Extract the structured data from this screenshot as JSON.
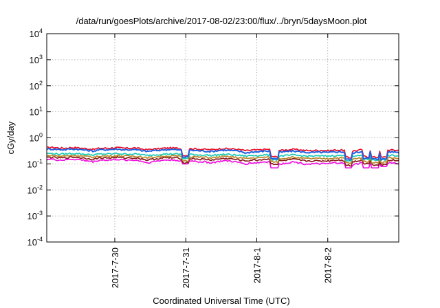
{
  "chart_data": {
    "type": "line",
    "title": "/data/run/goesPlots/archive/2017-08-02/23:00/flux/../bryn/5daysMoon.plot",
    "xlabel": "Coordinated Universal Time (UTC)",
    "ylabel": "cGy/day",
    "yscale": "log",
    "ylim": [
      0.0001,
      10000
    ],
    "yticks": [
      {
        "base": "10",
        "exp": "4",
        "value": 10000
      },
      {
        "base": "10",
        "exp": "3",
        "value": 1000
      },
      {
        "base": "10",
        "exp": "2",
        "value": 100
      },
      {
        "base": "10",
        "exp": "1",
        "value": 10
      },
      {
        "base": "10",
        "exp": "0",
        "value": 1
      },
      {
        "base": "10",
        "exp": "-1",
        "value": 0.1
      },
      {
        "base": "10",
        "exp": "-2",
        "value": 0.01
      },
      {
        "base": "10",
        "exp": "-3",
        "value": 0.001
      },
      {
        "base": "10",
        "exp": "-4",
        "value": 0.0001
      }
    ],
    "xlim": [
      "2017-07-29 01:00",
      "2017-08-03 00:00"
    ],
    "xticks": [
      {
        "label": "2017-7-30",
        "value": "2017-07-30 00:00"
      },
      {
        "label": "2017-7-31",
        "value": "2017-07-31 00:00"
      },
      {
        "label": "2017-8-1",
        "value": "2017-08-01 00:00"
      },
      {
        "label": "2017-8-2",
        "value": "2017-08-02 00:00"
      }
    ],
    "grid": true,
    "series": [
      {
        "color": "#e8102a",
        "base": 0.4,
        "values": [
          0.42,
          0.43,
          0.41,
          0.4,
          0.42,
          0.42,
          0.4,
          0.38,
          0.36,
          0.4,
          0.4,
          0.41,
          0.42,
          0.4,
          0.4,
          0.41,
          0.38,
          0.35,
          0.37,
          0.38,
          0.4,
          0.41,
          0.4,
          0.38,
          0.39,
          0.38,
          0.37,
          0.36,
          0.35,
          0.37,
          0.39,
          0.38,
          0.37,
          0.35,
          0.32,
          0.34,
          0.34,
          0.36,
          0.36,
          0.34,
          0.33,
          0.35,
          0.36,
          0.35,
          0.33,
          0.32,
          0.33,
          0.33,
          0.32,
          0.34,
          0.34,
          0.33,
          0.31,
          0.33,
          0.36,
          0.34,
          0.33,
          0.32,
          0.34,
          0.34,
          0.33
        ]
      },
      {
        "color": "#1f5fe0",
        "base": 0.34,
        "values": [
          0.37,
          0.37,
          0.36,
          0.35,
          0.37,
          0.37,
          0.35,
          0.33,
          0.31,
          0.35,
          0.35,
          0.36,
          0.37,
          0.35,
          0.35,
          0.35,
          0.33,
          0.3,
          0.32,
          0.33,
          0.35,
          0.36,
          0.35,
          0.33,
          0.34,
          0.33,
          0.32,
          0.31,
          0.3,
          0.32,
          0.34,
          0.33,
          0.32,
          0.3,
          0.26,
          0.29,
          0.29,
          0.31,
          0.31,
          0.29,
          0.28,
          0.3,
          0.31,
          0.3,
          0.28,
          0.27,
          0.28,
          0.28,
          0.27,
          0.29,
          0.29,
          0.28,
          0.26,
          0.28,
          0.31,
          0.29,
          0.28,
          0.27,
          0.29,
          0.29,
          0.28
        ]
      },
      {
        "color": "#19c9b6",
        "base": 0.24,
        "values": [
          0.25,
          0.25,
          0.24,
          0.24,
          0.25,
          0.25,
          0.24,
          0.23,
          0.22,
          0.24,
          0.24,
          0.24,
          0.25,
          0.24,
          0.24,
          0.24,
          0.23,
          0.21,
          0.22,
          0.23,
          0.24,
          0.24,
          0.24,
          0.23,
          0.23,
          0.23,
          0.22,
          0.22,
          0.21,
          0.22,
          0.23,
          0.23,
          0.22,
          0.21,
          0.2,
          0.21,
          0.21,
          0.22,
          0.22,
          0.21,
          0.2,
          0.21,
          0.22,
          0.21,
          0.2,
          0.2,
          0.2,
          0.2,
          0.2,
          0.21,
          0.21,
          0.2,
          0.19,
          0.2,
          0.22,
          0.21,
          0.2,
          0.2,
          0.21,
          0.21,
          0.2
        ]
      },
      {
        "color": "#b8862a",
        "base": 0.2,
        "values": [
          0.21,
          0.21,
          0.2,
          0.2,
          0.21,
          0.21,
          0.2,
          0.19,
          0.18,
          0.2,
          0.2,
          0.2,
          0.21,
          0.2,
          0.2,
          0.2,
          0.19,
          0.17,
          0.18,
          0.19,
          0.2,
          0.2,
          0.2,
          0.19,
          0.19,
          0.19,
          0.18,
          0.18,
          0.17,
          0.18,
          0.19,
          0.19,
          0.18,
          0.17,
          0.16,
          0.17,
          0.17,
          0.18,
          0.18,
          0.17,
          0.16,
          0.17,
          0.18,
          0.17,
          0.16,
          0.16,
          0.16,
          0.16,
          0.16,
          0.17,
          0.17,
          0.16,
          0.15,
          0.16,
          0.18,
          0.17,
          0.16,
          0.16,
          0.17,
          0.17,
          0.16
        ]
      },
      {
        "color": "#8a1a1a",
        "base": 0.17,
        "values": [
          0.18,
          0.18,
          0.17,
          0.17,
          0.18,
          0.18,
          0.17,
          0.16,
          0.15,
          0.17,
          0.17,
          0.17,
          0.18,
          0.17,
          0.17,
          0.17,
          0.16,
          0.14,
          0.15,
          0.16,
          0.17,
          0.17,
          0.17,
          0.16,
          0.16,
          0.16,
          0.15,
          0.15,
          0.14,
          0.15,
          0.16,
          0.16,
          0.15,
          0.14,
          0.13,
          0.14,
          0.14,
          0.15,
          0.15,
          0.14,
          0.13,
          0.14,
          0.15,
          0.14,
          0.13,
          0.13,
          0.13,
          0.13,
          0.13,
          0.14,
          0.14,
          0.13,
          0.12,
          0.13,
          0.15,
          0.14,
          0.13,
          0.13,
          0.14,
          0.14,
          0.13
        ]
      },
      {
        "color": "#f010e0",
        "base": 0.14,
        "values": [
          0.15,
          0.15,
          0.14,
          0.14,
          0.15,
          0.15,
          0.14,
          0.13,
          0.12,
          0.14,
          0.14,
          0.14,
          0.15,
          0.14,
          0.14,
          0.14,
          0.13,
          0.11,
          0.12,
          0.13,
          0.14,
          0.14,
          0.14,
          0.13,
          0.13,
          0.13,
          0.12,
          0.12,
          0.11,
          0.12,
          0.13,
          0.13,
          0.12,
          0.11,
          0.1,
          0.11,
          0.11,
          0.12,
          0.12,
          0.11,
          0.1,
          0.11,
          0.12,
          0.11,
          0.1,
          0.1,
          0.1,
          0.1,
          0.1,
          0.11,
          0.11,
          0.1,
          0.09,
          0.1,
          0.12,
          0.11,
          0.1,
          0.1,
          0.11,
          0.11,
          0.1
        ]
      }
    ],
    "dips": [
      {
        "time": "2017-07-31 00:00",
        "value": 0.1
      },
      {
        "time": "2017-08-01 06:00",
        "value": 0.07
      },
      {
        "time": "2017-08-02 07:00",
        "value": 0.07
      },
      {
        "time": "2017-08-02 13:00",
        "value": 0.07
      },
      {
        "time": "2017-08-02 16:00",
        "value": 0.07
      },
      {
        "time": "2017-08-02 19:00",
        "value": 0.08
      }
    ]
  }
}
